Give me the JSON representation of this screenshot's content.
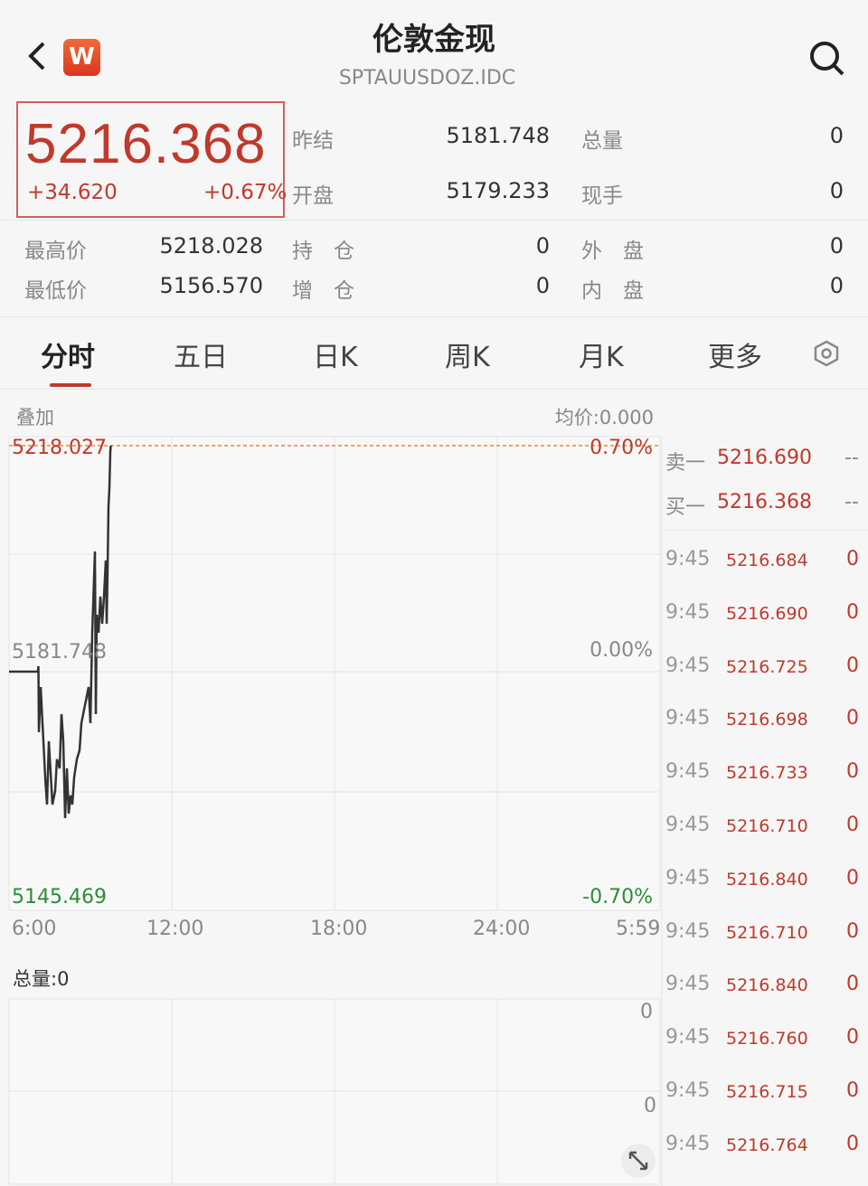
{
  "header": {
    "title": "伦敦金现",
    "subtitle": "SPTAUUSDOZ.IDC",
    "logo_text": "W",
    "back_icon": "chevron-left-icon",
    "search_icon": "search-icon"
  },
  "quote": {
    "price": "5216.368",
    "change": "+34.620",
    "change_pct": "+0.67%"
  },
  "stats": [
    {
      "label": "昨结",
      "value": "5181.748"
    },
    {
      "label": "总量",
      "value": "0"
    },
    {
      "label": "开盘",
      "value": "5179.233"
    },
    {
      "label": "现手",
      "value": "0"
    },
    {
      "label": "最高价",
      "value": "5218.028"
    },
    {
      "label": "持　仓",
      "value": "0"
    },
    {
      "label": "外　盘",
      "value": "0"
    },
    {
      "label": "最低价",
      "value": "5156.570"
    },
    {
      "label": "增　仓",
      "value": "0"
    },
    {
      "label": "内　盘",
      "value": "0"
    }
  ],
  "tabs": [
    {
      "label": "分时",
      "active": true
    },
    {
      "label": "五日"
    },
    {
      "label": "日K"
    },
    {
      "label": "周K"
    },
    {
      "label": "月K"
    },
    {
      "label": "更多"
    }
  ],
  "settings_icon": "hexagon-settings-icon",
  "chart_header": {
    "overlay": "叠加",
    "avg_price": "均价:0.000"
  },
  "colors": {
    "up": "#c0392b",
    "down": "#2e8b3a",
    "line": "#333333",
    "ref_line": "#e08a3a"
  },
  "chart_data": {
    "type": "line",
    "y_labels_left": {
      "top": "5218.027",
      "mid": "5181.748",
      "bottom": "5145.469"
    },
    "y_labels_right": {
      "top": "0.70%",
      "mid": "0.00%",
      "bottom": "-0.70%"
    },
    "ylim": [
      5145.469,
      5218.027
    ],
    "reference": 5181.748,
    "x_ticks": [
      "6:00",
      "12:00",
      "18:00",
      "24:00",
      "5:59"
    ],
    "points": [
      [
        "6:00",
        5181.75
      ],
      [
        "7:04",
        5181.75
      ],
      [
        "7:05",
        5182.62
      ],
      [
        "7:06",
        5172.03
      ],
      [
        "7:10",
        5179.28
      ],
      [
        "7:16",
        5170.58
      ],
      [
        "7:20",
        5164.77
      ],
      [
        "7:24",
        5160.42
      ],
      [
        "7:28",
        5170.58
      ],
      [
        "7:32",
        5165.5
      ],
      [
        "7:36",
        5160.42
      ],
      [
        "7:42",
        5162.6
      ],
      [
        "7:46",
        5167.68
      ],
      [
        "7:52",
        5166.22
      ],
      [
        "7:56",
        5174.93
      ],
      [
        "8:00",
        5170.58
      ],
      [
        "8:04",
        5158.24
      ],
      [
        "8:08",
        5166.22
      ],
      [
        "8:12",
        5158.97
      ],
      [
        "8:16",
        5161.87
      ],
      [
        "8:20",
        5160.42
      ],
      [
        "8:24",
        5164.77
      ],
      [
        "8:30",
        5167.68
      ],
      [
        "8:36",
        5169.13
      ],
      [
        "8:40",
        5173.48
      ],
      [
        "8:48",
        5176.38
      ],
      [
        "8:56",
        5179.28
      ],
      [
        "9:00",
        5173.48
      ],
      [
        "9:04",
        5187.99
      ],
      [
        "9:08",
        5196.7
      ],
      [
        "9:10",
        5201.05
      ],
      [
        "9:12",
        5174.93
      ],
      [
        "9:14",
        5190.89
      ],
      [
        "9:18",
        5187.99
      ],
      [
        "9:22",
        5193.8
      ],
      [
        "9:26",
        5189.44
      ],
      [
        "9:30",
        5193.8
      ],
      [
        "9:34",
        5199.6
      ],
      [
        "9:36",
        5189.44
      ],
      [
        "9:38",
        5198.15
      ],
      [
        "9:40",
        5208.31
      ],
      [
        "9:42",
        5211.21
      ],
      [
        "9:44",
        5217.01
      ],
      [
        "9:45",
        5218.03
      ]
    ]
  },
  "volume": {
    "label": "总量:0",
    "top_label": "0",
    "mid_label": "0",
    "expand_icon": "expand-icon"
  },
  "order_book": [
    {
      "label": "卖一",
      "price": "5216.690",
      "qty": "--"
    },
    {
      "label": "买一",
      "price": "5216.368",
      "qty": "--"
    }
  ],
  "trades": [
    {
      "time": "9:45",
      "price": "5216.684",
      "qty": "0"
    },
    {
      "time": "9:45",
      "price": "5216.690",
      "qty": "0"
    },
    {
      "time": "9:45",
      "price": "5216.725",
      "qty": "0"
    },
    {
      "time": "9:45",
      "price": "5216.698",
      "qty": "0"
    },
    {
      "time": "9:45",
      "price": "5216.733",
      "qty": "0"
    },
    {
      "time": "9:45",
      "price": "5216.710",
      "qty": "0"
    },
    {
      "time": "9:45",
      "price": "5216.840",
      "qty": "0"
    },
    {
      "time": "9:45",
      "price": "5216.710",
      "qty": "0"
    },
    {
      "time": "9:45",
      "price": "5216.840",
      "qty": "0"
    },
    {
      "time": "9:45",
      "price": "5216.760",
      "qty": "0"
    },
    {
      "time": "9:45",
      "price": "5216.715",
      "qty": "0"
    },
    {
      "time": "9:45",
      "price": "5216.764",
      "qty": "0"
    }
  ]
}
